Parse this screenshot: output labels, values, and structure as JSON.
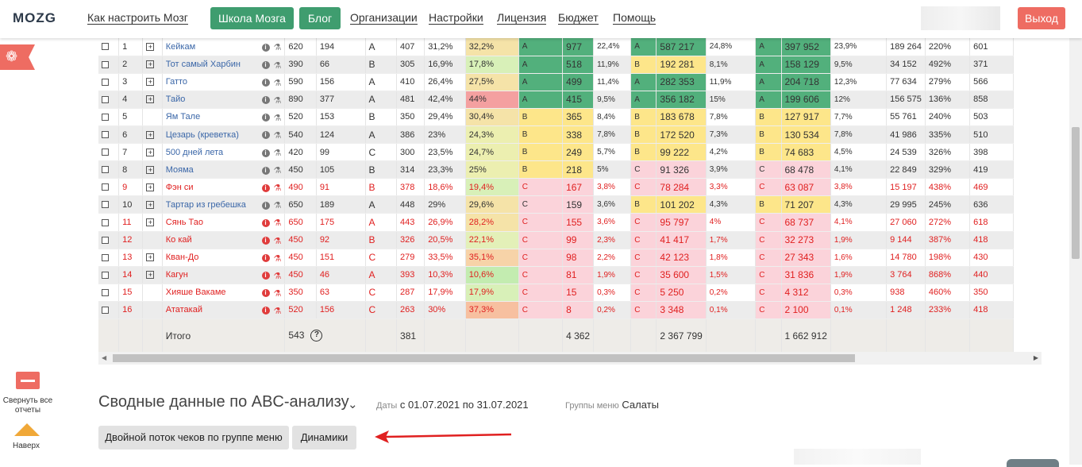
{
  "header": {
    "logo": "MOZG",
    "nav": [
      {
        "label": "Как настроить Мозг"
      },
      {
        "label": "Организации"
      },
      {
        "label": "Настройки"
      },
      {
        "label": "Лицензия"
      },
      {
        "label": "Бюджет"
      },
      {
        "label": "Помощь"
      }
    ],
    "school_button": "Школа Мозга",
    "blog_button": "Блог",
    "logout_button": "Выход"
  },
  "sidebar": {
    "collapse_label": "Свернуть все отчеты",
    "up_label": "Наверх"
  },
  "colors": {
    "green_A": "#52b07c",
    "yellow_B": "#fde68a",
    "pink_C": "#fbd3da",
    "accent_red": "#ee6c62",
    "green_button": "#3f9d6f"
  },
  "table": {
    "rows": [
      {
        "n": "1",
        "plus": true,
        "red": false,
        "name": "Кейкам",
        "c1": "620",
        "c2": "194",
        "g": "A",
        "c3": "407",
        "c4": "31,2%",
        "m": "32,2%",
        "mcolor": "#f5e3a8",
        "a1": "A",
        "v1": "977",
        "p1": "22,4%",
        "a2": "A",
        "v2": "587 217",
        "p2": "24,8%",
        "a3": "A",
        "v3": "397 952",
        "p3": "23,9%",
        "r1": "189 264",
        "r2": "220%",
        "r3": "601"
      },
      {
        "n": "2",
        "plus": true,
        "red": false,
        "name": "Тот самый Харбин",
        "c1": "390",
        "c2": "66",
        "g": "B",
        "c3": "305",
        "c4": "16,9%",
        "m": "17,8%",
        "mcolor": "#d8f0b8",
        "a1": "A",
        "v1": "518",
        "p1": "11,9%",
        "a2": "B",
        "v2": "192 281",
        "p2": "8,1%",
        "a3": "A",
        "v3": "158 129",
        "p3": "9,5%",
        "r1": "34 152",
        "r2": "492%",
        "r3": "371"
      },
      {
        "n": "3",
        "plus": true,
        "red": false,
        "name": "Гатто",
        "c1": "590",
        "c2": "156",
        "g": "A",
        "c3": "410",
        "c4": "26,4%",
        "m": "27,5%",
        "mcolor": "#f5e3a8",
        "a1": "A",
        "v1": "499",
        "p1": "11,4%",
        "a2": "A",
        "v2": "282 353",
        "p2": "11,9%",
        "a3": "A",
        "v3": "204 718",
        "p3": "12,3%",
        "r1": "77 634",
        "r2": "279%",
        "r3": "566"
      },
      {
        "n": "4",
        "plus": true,
        "red": false,
        "name": "Тайо",
        "c1": "890",
        "c2": "377",
        "g": "A",
        "c3": "481",
        "c4": "42,4%",
        "m": "44%",
        "mcolor": "#f4a0a0",
        "a1": "A",
        "v1": "415",
        "p1": "9,5%",
        "a2": "A",
        "v2": "356 182",
        "p2": "15%",
        "a3": "A",
        "v3": "199 606",
        "p3": "12%",
        "r1": "156 575",
        "r2": "136%",
        "r3": "858"
      },
      {
        "n": "5",
        "plus": false,
        "red": false,
        "name": "Ям Тале",
        "c1": "520",
        "c2": "153",
        "g": "B",
        "c3": "350",
        "c4": "29,4%",
        "m": "30,4%",
        "mcolor": "#f5e3a8",
        "a1": "B",
        "v1": "365",
        "p1": "8,4%",
        "a2": "B",
        "v2": "183 678",
        "p2": "7,8%",
        "a3": "B",
        "v3": "127 917",
        "p3": "7,7%",
        "r1": "55 761",
        "r2": "240%",
        "r3": "503"
      },
      {
        "n": "6",
        "plus": true,
        "red": false,
        "name": "Цезарь (креветка)",
        "c1": "540",
        "c2": "124",
        "g": "A",
        "c3": "386",
        "c4": "23%",
        "m": "24,3%",
        "mcolor": "#ecefb0",
        "a1": "B",
        "v1": "338",
        "p1": "7,8%",
        "a2": "B",
        "v2": "172 520",
        "p2": "7,3%",
        "a3": "B",
        "v3": "130 534",
        "p3": "7,8%",
        "r1": "41 986",
        "r2": "335%",
        "r3": "510"
      },
      {
        "n": "7",
        "plus": true,
        "red": false,
        "name": "500 дней лета",
        "c1": "420",
        "c2": "99",
        "g": "C",
        "c3": "300",
        "c4": "23,5%",
        "m": "24,7%",
        "mcolor": "#ecefb0",
        "a1": "B",
        "v1": "249",
        "p1": "5,7%",
        "a2": "B",
        "v2": "99 222",
        "p2": "4,2%",
        "a3": "B",
        "v3": "74 683",
        "p3": "4,5%",
        "r1": "24 539",
        "r2": "326%",
        "r3": "398"
      },
      {
        "n": "8",
        "plus": true,
        "red": false,
        "name": "Мояма",
        "c1": "450",
        "c2": "105",
        "g": "B",
        "c3": "314",
        "c4": "23,3%",
        "m": "25%",
        "mcolor": "#ecefb0",
        "a1": "B",
        "v1": "218",
        "p1": "5%",
        "a2": "C",
        "v2": "91 326",
        "p2": "3,9%",
        "a3": "C",
        "v3": "68 478",
        "p3": "4,1%",
        "r1": "22 849",
        "r2": "329%",
        "r3": "419"
      },
      {
        "n": "9",
        "plus": true,
        "red": true,
        "name": "Фэн си",
        "c1": "490",
        "c2": "91",
        "g": "B",
        "c3": "378",
        "c4": "18,6%",
        "m": "19,4%",
        "mcolor": "#d8f0b8",
        "a1": "C",
        "v1": "167",
        "p1": "3,8%",
        "a2": "C",
        "v2": "78 284",
        "p2": "3,3%",
        "a3": "C",
        "v3": "63 087",
        "p3": "3,8%",
        "r1": "15 197",
        "r2": "438%",
        "r3": "469"
      },
      {
        "n": "10",
        "plus": true,
        "red": false,
        "name": "Тартар из гребешка",
        "c1": "650",
        "c2": "189",
        "g": "A",
        "c3": "448",
        "c4": "29%",
        "m": "29,6%",
        "mcolor": "#f5e3a8",
        "a1": "C",
        "v1": "159",
        "p1": "3,6%",
        "a2": "B",
        "v2": "101 202",
        "p2": "4,3%",
        "a3": "B",
        "v3": "71 207",
        "p3": "4,3%",
        "r1": "29 995",
        "r2": "245%",
        "r3": "636"
      },
      {
        "n": "11",
        "plus": true,
        "red": true,
        "name": "Сянь Тао",
        "c1": "650",
        "c2": "175",
        "g": "A",
        "c3": "443",
        "c4": "26,9%",
        "m": "28,2%",
        "mcolor": "#f5e3a8",
        "a1": "C",
        "v1": "155",
        "p1": "3,6%",
        "a2": "C",
        "v2": "95 797",
        "p2": "4%",
        "a3": "C",
        "v3": "68 737",
        "p3": "4,1%",
        "r1": "27 060",
        "r2": "272%",
        "r3": "618"
      },
      {
        "n": "12",
        "plus": false,
        "red": true,
        "name": "Ко кай",
        "c1": "450",
        "c2": "92",
        "g": "B",
        "c3": "326",
        "c4": "20,5%",
        "m": "22,1%",
        "mcolor": "#e3f0b8",
        "a1": "C",
        "v1": "99",
        "p1": "2,3%",
        "a2": "C",
        "v2": "41 417",
        "p2": "1,7%",
        "a3": "C",
        "v3": "32 273",
        "p3": "1,9%",
        "r1": "9 144",
        "r2": "387%",
        "r3": "418"
      },
      {
        "n": "13",
        "plus": true,
        "red": true,
        "name": "Кван-До",
        "c1": "450",
        "c2": "151",
        "g": "C",
        "c3": "279",
        "c4": "33,5%",
        "m": "35,1%",
        "mcolor": "#f7d3a8",
        "a1": "C",
        "v1": "98",
        "p1": "2,2%",
        "a2": "C",
        "v2": "42 123",
        "p2": "1,8%",
        "a3": "C",
        "v3": "27 343",
        "p3": "1,6%",
        "r1": "14 780",
        "r2": "198%",
        "r3": "430"
      },
      {
        "n": "14",
        "plus": true,
        "red": true,
        "name": "Кагун",
        "c1": "450",
        "c2": "46",
        "g": "A",
        "c3": "393",
        "c4": "10,3%",
        "m": "10,6%",
        "mcolor": "#c3ecb0",
        "a1": "C",
        "v1": "81",
        "p1": "1,9%",
        "a2": "C",
        "v2": "35 600",
        "p2": "1,5%",
        "a3": "C",
        "v3": "31 836",
        "p3": "1,9%",
        "r1": "3 764",
        "r2": "868%",
        "r3": "440"
      },
      {
        "n": "15",
        "plus": false,
        "red": true,
        "name": "Хияше Вакаме",
        "c1": "350",
        "c2": "63",
        "g": "C",
        "c3": "287",
        "c4": "17,9%",
        "m": "17,9%",
        "mcolor": "#d8f0b8",
        "a1": "C",
        "v1": "15",
        "p1": "0,3%",
        "a2": "C",
        "v2": "5 250",
        "p2": "0,2%",
        "a3": "C",
        "v3": "4 312",
        "p3": "0,3%",
        "r1": "938",
        "r2": "460%",
        "r3": "350"
      },
      {
        "n": "16",
        "plus": false,
        "red": true,
        "name": "Ататакай",
        "c1": "520",
        "c2": "156",
        "g": "C",
        "c3": "263",
        "c4": "30%",
        "m": "37,3%",
        "mcolor": "#f7c0a0",
        "a1": "C",
        "v1": "8",
        "p1": "0,2%",
        "a2": "C",
        "v2": "3 348",
        "p2": "0,1%",
        "a3": "C",
        "v3": "2 100",
        "p3": "0,1%",
        "r1": "1 248",
        "r2": "233%",
        "r3": "418"
      }
    ],
    "total": {
      "label": "Итого",
      "c1": "543",
      "c3": "381",
      "v1": "4 362",
      "v2": "2 367 799",
      "v3": "1 662 912"
    }
  },
  "summary": {
    "title": "Сводные данные по ABC-анализу",
    "dates_label": "Даты",
    "dates_value": "с 01.07.2021 по 31.07.2021",
    "groups_label": "Группы меню",
    "groups_value": "Салаты",
    "btn_flow": "Двойной поток чеков по группе меню",
    "btn_dynamics": "Динамики"
  }
}
